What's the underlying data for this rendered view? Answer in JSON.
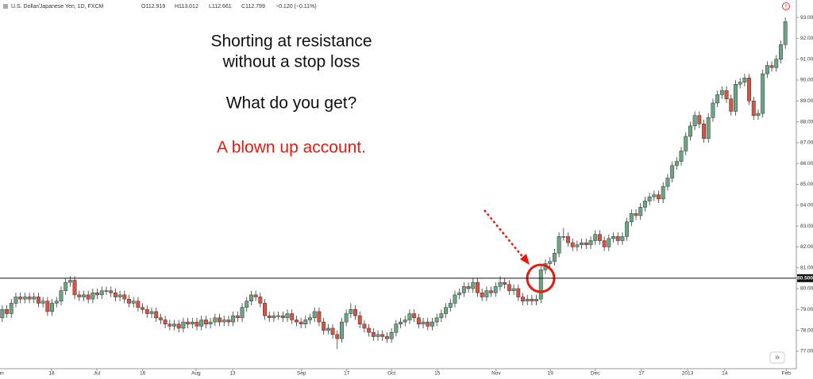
{
  "chart_data": {
    "type": "candlestick",
    "title": "U.S. Dollar/Japanese Yen, 1D, FXCM",
    "quote": {
      "open": "O112.919",
      "high": "H113.012",
      "low": "L112.661",
      "close": "C112.799",
      "change": "−0.120 (−0.11%)"
    },
    "annotations": [
      "Shorting at resistance",
      "without a stop loss",
      "What do you get?",
      "A blown up account."
    ],
    "up_color": "#6ba583",
    "down_color": "#d75442",
    "hline": {
      "value": 80.5,
      "label": "80.500"
    },
    "ylim": [
      76.16,
      93.84
    ],
    "yticks": [
      {
        "value": 77,
        "label": "77.00"
      },
      {
        "value": 78,
        "label": "78.00"
      },
      {
        "value": 79,
        "label": "79.00"
      },
      {
        "value": 80,
        "label": "80.00"
      },
      {
        "value": 81,
        "label": "81.00"
      },
      {
        "value": 82,
        "label": "82.00"
      },
      {
        "value": 83,
        "label": "83.00"
      },
      {
        "value": 84,
        "label": "84.00"
      },
      {
        "value": 85,
        "label": "85.00"
      },
      {
        "value": 86,
        "label": "86.00"
      },
      {
        "value": 87,
        "label": "87.00"
      },
      {
        "value": 88,
        "label": "88.00"
      },
      {
        "value": 89,
        "label": "89.00"
      },
      {
        "value": 90,
        "label": "90.00"
      },
      {
        "value": 91,
        "label": "91.00"
      },
      {
        "value": 92,
        "label": "92.00"
      },
      {
        "value": 93,
        "label": "93.00"
      }
    ],
    "xlim": [
      -0.5,
      174.9
    ],
    "xticks": [
      {
        "value": -0.6,
        "label": "Jun"
      },
      {
        "value": 10.9,
        "label": "18"
      },
      {
        "value": 20.9,
        "label": "Jul"
      },
      {
        "value": 31,
        "label": "16"
      },
      {
        "value": 42.8,
        "label": "Aug"
      },
      {
        "value": 50.9,
        "label": "13"
      },
      {
        "value": 66.1,
        "label": "Sep"
      },
      {
        "value": 76.1,
        "label": "17"
      },
      {
        "value": 86,
        "label": "Oct"
      },
      {
        "value": 96.1,
        "label": "15"
      },
      {
        "value": 109.1,
        "label": "Nov"
      },
      {
        "value": 121.1,
        "label": "19"
      },
      {
        "value": 131,
        "label": "Dec"
      },
      {
        "value": 141.2,
        "label": "17"
      },
      {
        "value": 151.4,
        "label": "2013"
      },
      {
        "value": 159.6,
        "label": "14"
      },
      {
        "value": 173.2,
        "label": "Feb"
      }
    ],
    "ohlc": [
      [
        78.6,
        79.2,
        78.4,
        79.0
      ],
      [
        79.0,
        79.2,
        78.6,
        78.8
      ],
      [
        78.8,
        79.5,
        78.6,
        79.3
      ],
      [
        79.3,
        79.8,
        79.1,
        79.6
      ],
      [
        79.6,
        79.8,
        79.3,
        79.5
      ],
      [
        79.5,
        79.8,
        79.3,
        79.6
      ],
      [
        79.6,
        79.8,
        79.3,
        79.5
      ],
      [
        79.5,
        79.8,
        79.3,
        79.6
      ],
      [
        79.6,
        79.8,
        79.1,
        79.3
      ],
      [
        79.3,
        79.6,
        79.1,
        79.4
      ],
      [
        79.4,
        79.6,
        78.7,
        78.9
      ],
      [
        78.9,
        79.5,
        78.7,
        79.3
      ],
      [
        79.3,
        79.6,
        79.1,
        79.4
      ],
      [
        79.4,
        80.1,
        79.2,
        79.9
      ],
      [
        79.9,
        80.5,
        79.7,
        80.3
      ],
      [
        80.3,
        80.6,
        80.1,
        80.4
      ],
      [
        80.4,
        80.6,
        79.5,
        79.7
      ],
      [
        79.7,
        79.9,
        79.4,
        79.6
      ],
      [
        79.6,
        79.9,
        79.4,
        79.7
      ],
      [
        79.7,
        79.9,
        79.3,
        79.5
      ],
      [
        79.5,
        80.0,
        79.3,
        79.8
      ],
      [
        79.8,
        80.0,
        79.5,
        79.7
      ],
      [
        79.7,
        80.1,
        79.5,
        79.9
      ],
      [
        79.9,
        80.1,
        79.7,
        79.9
      ],
      [
        79.9,
        80.1,
        79.6,
        79.8
      ],
      [
        79.8,
        80.0,
        79.4,
        79.6
      ],
      [
        79.6,
        79.9,
        79.4,
        79.7
      ],
      [
        79.7,
        79.9,
        79.3,
        79.5
      ],
      [
        79.5,
        79.7,
        79.1,
        79.3
      ],
      [
        79.3,
        79.6,
        79.1,
        79.4
      ],
      [
        79.4,
        79.6,
        78.9,
        79.1
      ],
      [
        79.1,
        79.3,
        78.8,
        79.0
      ],
      [
        79.0,
        79.2,
        78.6,
        78.8
      ],
      [
        78.8,
        79.1,
        78.6,
        78.9
      ],
      [
        78.9,
        79.1,
        78.4,
        78.6
      ],
      [
        78.6,
        78.8,
        78.3,
        78.5
      ],
      [
        78.5,
        78.7,
        78.1,
        78.3
      ],
      [
        78.3,
        78.5,
        78.0,
        78.2
      ],
      [
        78.2,
        78.5,
        78.0,
        78.3
      ],
      [
        78.3,
        78.5,
        77.9,
        78.1
      ],
      [
        78.1,
        78.6,
        77.9,
        78.4
      ],
      [
        78.4,
        78.6,
        78.1,
        78.3
      ],
      [
        78.3,
        78.6,
        78.1,
        78.4
      ],
      [
        78.4,
        78.6,
        78.0,
        78.2
      ],
      [
        78.2,
        78.7,
        78.0,
        78.5
      ],
      [
        78.5,
        78.7,
        78.1,
        78.3
      ],
      [
        78.3,
        78.6,
        78.1,
        78.4
      ],
      [
        78.4,
        78.8,
        78.2,
        78.6
      ],
      [
        78.6,
        78.8,
        78.2,
        78.4
      ],
      [
        78.4,
        78.7,
        78.2,
        78.5
      ],
      [
        78.5,
        78.7,
        78.2,
        78.4
      ],
      [
        78.4,
        78.9,
        78.2,
        78.7
      ],
      [
        78.7,
        78.9,
        78.4,
        78.6
      ],
      [
        78.6,
        79.3,
        78.4,
        79.1
      ],
      [
        79.1,
        79.6,
        78.9,
        79.4
      ],
      [
        79.4,
        79.9,
        79.2,
        79.7
      ],
      [
        79.7,
        79.9,
        79.4,
        79.6
      ],
      [
        79.6,
        79.8,
        79.1,
        79.3
      ],
      [
        79.3,
        79.5,
        78.5,
        78.7
      ],
      [
        78.7,
        78.9,
        78.4,
        78.6
      ],
      [
        78.6,
        78.9,
        78.4,
        78.7
      ],
      [
        78.7,
        78.9,
        78.5,
        78.7
      ],
      [
        78.7,
        78.9,
        78.4,
        78.6
      ],
      [
        78.6,
        79.0,
        78.4,
        78.8
      ],
      [
        78.8,
        79.0,
        78.3,
        78.5
      ],
      [
        78.5,
        78.7,
        78.2,
        78.4
      ],
      [
        78.4,
        78.6,
        78.1,
        78.3
      ],
      [
        78.3,
        78.7,
        78.1,
        78.5
      ],
      [
        78.5,
        78.8,
        78.3,
        78.6
      ],
      [
        78.6,
        79.1,
        78.4,
        78.9
      ],
      [
        78.9,
        79.1,
        78.2,
        78.4
      ],
      [
        78.4,
        78.6,
        77.8,
        78.0
      ],
      [
        78.0,
        78.3,
        77.8,
        78.1
      ],
      [
        78.1,
        78.3,
        77.6,
        77.8
      ],
      [
        77.8,
        78.0,
        77.1,
        77.6
      ],
      [
        77.6,
        78.6,
        77.4,
        78.4
      ],
      [
        78.4,
        79.0,
        78.2,
        78.8
      ],
      [
        78.8,
        79.3,
        78.6,
        79.0
      ],
      [
        79.0,
        79.2,
        78.5,
        78.7
      ],
      [
        78.7,
        78.9,
        78.1,
        78.3
      ],
      [
        78.3,
        78.5,
        77.9,
        78.1
      ],
      [
        78.1,
        78.3,
        77.7,
        77.9
      ],
      [
        77.9,
        78.1,
        77.5,
        77.7
      ],
      [
        77.7,
        78.0,
        77.5,
        77.8
      ],
      [
        77.8,
        78.0,
        77.5,
        77.7
      ],
      [
        77.7,
        77.9,
        77.4,
        77.6
      ],
      [
        77.6,
        78.1,
        77.4,
        77.9
      ],
      [
        77.9,
        78.5,
        77.7,
        78.3
      ],
      [
        78.3,
        78.6,
        78.1,
        78.4
      ],
      [
        78.4,
        78.7,
        78.2,
        78.5
      ],
      [
        78.5,
        79.0,
        78.3,
        78.8
      ],
      [
        78.8,
        79.0,
        78.4,
        78.6
      ],
      [
        78.6,
        78.8,
        78.1,
        78.3
      ],
      [
        78.3,
        78.6,
        78.1,
        78.4
      ],
      [
        78.4,
        78.6,
        78.0,
        78.2
      ],
      [
        78.2,
        78.6,
        78.0,
        78.4
      ],
      [
        78.4,
        78.8,
        78.2,
        78.6
      ],
      [
        78.6,
        79.0,
        78.4,
        78.8
      ],
      [
        78.8,
        79.3,
        78.6,
        79.1
      ],
      [
        79.1,
        79.5,
        78.9,
        79.3
      ],
      [
        79.3,
        79.9,
        79.1,
        79.7
      ],
      [
        79.7,
        80.0,
        79.5,
        79.8
      ],
      [
        79.8,
        80.3,
        79.6,
        80.1
      ],
      [
        80.1,
        80.3,
        79.8,
        80.0
      ],
      [
        80.0,
        80.5,
        79.8,
        80.3
      ],
      [
        80.3,
        80.5,
        79.6,
        79.8
      ],
      [
        79.8,
        80.0,
        79.4,
        79.6
      ],
      [
        79.6,
        80.1,
        79.4,
        79.9
      ],
      [
        79.9,
        80.1,
        79.6,
        79.8
      ],
      [
        79.8,
        80.3,
        79.6,
        80.1
      ],
      [
        80.1,
        80.6,
        79.9,
        80.3
      ],
      [
        80.3,
        80.5,
        80.0,
        80.2
      ],
      [
        80.2,
        80.4,
        79.7,
        79.9
      ],
      [
        79.9,
        80.2,
        79.7,
        80.0
      ],
      [
        80.0,
        80.2,
        79.4,
        79.6
      ],
      [
        79.6,
        79.8,
        79.2,
        79.4
      ],
      [
        79.4,
        79.7,
        79.2,
        79.5
      ],
      [
        79.5,
        79.7,
        79.2,
        79.4
      ],
      [
        79.4,
        79.7,
        79.2,
        79.5
      ],
      [
        79.5,
        81.1,
        79.3,
        80.9
      ],
      [
        80.9,
        81.4,
        80.7,
        81.2
      ],
      [
        81.2,
        81.5,
        81.0,
        81.3
      ],
      [
        81.3,
        81.9,
        81.1,
        81.7
      ],
      [
        81.7,
        82.7,
        81.5,
        82.5
      ],
      [
        82.5,
        82.9,
        82.3,
        82.5
      ],
      [
        82.5,
        82.7,
        82.0,
        82.2
      ],
      [
        82.2,
        82.4,
        81.8,
        82.0
      ],
      [
        82.0,
        82.3,
        81.8,
        82.1
      ],
      [
        82.1,
        82.4,
        81.9,
        82.2
      ],
      [
        82.2,
        82.4,
        81.9,
        82.1
      ],
      [
        82.1,
        82.5,
        81.9,
        82.3
      ],
      [
        82.3,
        82.8,
        82.1,
        82.6
      ],
      [
        82.6,
        82.8,
        82.1,
        82.3
      ],
      [
        82.3,
        82.5,
        81.8,
        82.0
      ],
      [
        82.0,
        82.6,
        81.8,
        82.4
      ],
      [
        82.4,
        82.7,
        82.2,
        82.5
      ],
      [
        82.5,
        82.7,
        82.1,
        82.3
      ],
      [
        82.3,
        82.7,
        82.1,
        82.5
      ],
      [
        82.5,
        83.4,
        82.3,
        83.2
      ],
      [
        83.2,
        83.8,
        83.0,
        83.6
      ],
      [
        83.6,
        83.8,
        83.3,
        83.5
      ],
      [
        83.5,
        84.1,
        83.3,
        83.9
      ],
      [
        83.9,
        84.4,
        83.7,
        84.2
      ],
      [
        84.2,
        84.6,
        84.0,
        84.4
      ],
      [
        84.4,
        84.7,
        84.2,
        84.5
      ],
      [
        84.5,
        84.7,
        84.1,
        84.3
      ],
      [
        84.3,
        85.1,
        84.1,
        84.9
      ],
      [
        84.9,
        85.5,
        84.7,
        85.3
      ],
      [
        85.3,
        86.1,
        85.1,
        85.9
      ],
      [
        85.9,
        86.3,
        85.7,
        86.1
      ],
      [
        86.1,
        86.8,
        85.9,
        86.6
      ],
      [
        86.6,
        87.5,
        86.4,
        87.3
      ],
      [
        87.3,
        88.0,
        87.1,
        87.8
      ],
      [
        87.8,
        88.5,
        87.6,
        88.3
      ],
      [
        88.3,
        88.5,
        87.7,
        87.9
      ],
      [
        87.9,
        88.1,
        87.0,
        87.2
      ],
      [
        87.2,
        88.4,
        87.0,
        88.2
      ],
      [
        88.2,
        89.1,
        88.0,
        88.9
      ],
      [
        88.9,
        89.5,
        88.7,
        89.3
      ],
      [
        89.3,
        89.7,
        89.1,
        89.5
      ],
      [
        89.5,
        89.7,
        88.9,
        89.1
      ],
      [
        89.1,
        89.3,
        88.3,
        88.5
      ],
      [
        88.5,
        90.0,
        88.3,
        89.8
      ],
      [
        89.8,
        90.1,
        89.6,
        89.9
      ],
      [
        89.9,
        90.3,
        89.7,
        90.1
      ],
      [
        90.1,
        90.3,
        88.8,
        89.0
      ],
      [
        89.0,
        89.2,
        88.1,
        88.3
      ],
      [
        88.3,
        88.6,
        88.1,
        88.4
      ],
      [
        88.4,
        90.5,
        88.2,
        90.3
      ],
      [
        90.3,
        90.9,
        90.1,
        90.7
      ],
      [
        90.7,
        90.9,
        90.4,
        90.6
      ],
      [
        90.6,
        91.2,
        90.4,
        91.0
      ],
      [
        91.0,
        91.9,
        90.8,
        91.7
      ],
      [
        91.7,
        93.0,
        91.5,
        92.8
      ]
    ]
  }
}
